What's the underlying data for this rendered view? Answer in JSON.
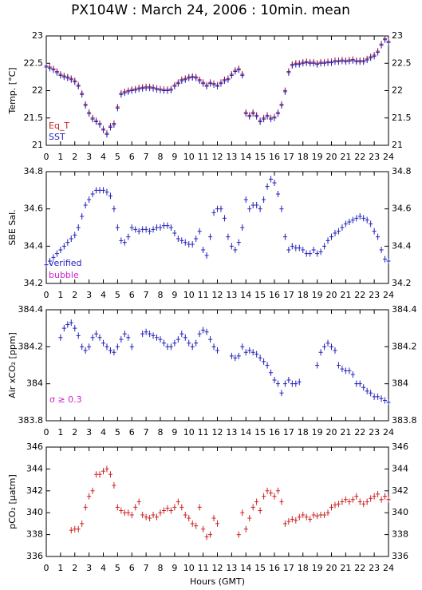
{
  "title": "PX104W : March 24, 2006 : 10min. mean",
  "chart_data": [
    {
      "type": "scatter",
      "ylabel": "Temp. [°C]",
      "x": [
        0,
        0.25,
        0.5,
        0.75,
        1,
        1.25,
        1.5,
        1.75,
        2,
        2.25,
        2.5,
        2.75,
        3,
        3.25,
        3.5,
        3.75,
        4,
        4.25,
        4.5,
        4.75,
        5,
        5.25,
        5.5,
        5.75,
        6,
        6.25,
        6.5,
        6.75,
        7,
        7.25,
        7.5,
        7.75,
        8,
        8.25,
        8.5,
        8.75,
        9,
        9.25,
        9.5,
        9.75,
        10,
        10.25,
        10.5,
        10.75,
        11,
        11.25,
        11.5,
        11.75,
        12,
        12.25,
        12.5,
        12.75,
        13,
        13.25,
        13.5,
        13.75,
        14,
        14.25,
        14.5,
        14.75,
        15,
        15.25,
        15.5,
        15.75,
        16,
        16.25,
        16.5,
        16.75,
        17,
        17.25,
        17.5,
        17.75,
        18,
        18.25,
        18.5,
        18.75,
        19,
        19.25,
        19.5,
        19.75,
        20,
        20.25,
        20.5,
        20.75,
        21,
        21.25,
        21.5,
        21.75,
        22,
        22.25,
        22.5,
        22.75,
        23,
        23.25,
        23.5,
        23.75,
        24
      ],
      "series": [
        {
          "name": "Eq_T",
          "color": "#cc2222",
          "values": [
            22.45,
            22.43,
            22.4,
            22.35,
            22.3,
            22.27,
            22.25,
            22.22,
            22.18,
            22.1,
            21.95,
            21.75,
            21.6,
            21.5,
            21.45,
            21.4,
            21.3,
            21.22,
            21.35,
            21.4,
            21.7,
            21.95,
            21.98,
            22.0,
            22.02,
            22.03,
            22.05,
            22.06,
            22.07,
            22.07,
            22.06,
            22.04,
            22.03,
            22.02,
            22.02,
            22.03,
            22.1,
            22.15,
            22.2,
            22.22,
            22.25,
            22.26,
            22.25,
            22.2,
            22.15,
            22.1,
            22.15,
            22.13,
            22.1,
            22.15,
            22.2,
            22.22,
            22.3,
            22.37,
            22.4,
            22.3,
            21.6,
            21.55,
            21.6,
            21.55,
            21.45,
            21.5,
            21.55,
            21.5,
            21.52,
            21.6,
            21.75,
            22.0,
            22.35,
            22.48,
            22.5,
            22.5,
            22.52,
            22.53,
            22.52,
            22.52,
            22.5,
            22.52,
            22.52,
            22.53,
            22.53,
            22.55,
            22.55,
            22.56,
            22.55,
            22.56,
            22.57,
            22.55,
            22.55,
            22.55,
            22.58,
            22.62,
            22.65,
            22.72,
            22.85,
            22.95,
            22.9
          ]
        },
        {
          "name": "SST",
          "color": "#2222bb",
          "values": [
            22.43,
            22.41,
            22.38,
            22.33,
            22.28,
            22.25,
            22.23,
            22.2,
            22.16,
            22.08,
            21.93,
            21.73,
            21.58,
            21.48,
            21.43,
            21.38,
            21.28,
            21.2,
            21.33,
            21.38,
            21.68,
            21.93,
            21.96,
            21.98,
            22.0,
            22.01,
            22.03,
            22.04,
            22.05,
            22.05,
            22.04,
            22.02,
            22.01,
            22.0,
            22.0,
            22.01,
            22.08,
            22.13,
            22.18,
            22.2,
            22.23,
            22.24,
            22.23,
            22.18,
            22.13,
            22.08,
            22.13,
            22.11,
            22.08,
            22.13,
            22.18,
            22.2,
            22.28,
            22.35,
            22.38,
            22.28,
            21.58,
            21.53,
            21.58,
            21.53,
            21.43,
            21.48,
            21.53,
            21.48,
            21.5,
            21.58,
            21.73,
            21.98,
            22.33,
            22.46,
            22.48,
            22.48,
            22.5,
            22.51,
            22.5,
            22.5,
            22.48,
            22.5,
            22.5,
            22.51,
            22.51,
            22.53,
            22.53,
            22.54,
            22.53,
            22.54,
            22.55,
            22.53,
            22.53,
            22.53,
            22.56,
            22.6,
            22.63,
            22.7,
            22.83,
            22.93,
            22.88
          ]
        }
      ],
      "xlim": [
        0,
        24
      ],
      "xticks": [
        0,
        1,
        2,
        3,
        4,
        5,
        6,
        7,
        8,
        9,
        10,
        11,
        12,
        13,
        14,
        15,
        16,
        17,
        18,
        19,
        20,
        21,
        22,
        23,
        24
      ],
      "ylim": [
        21,
        23
      ],
      "yticks": [
        21,
        21.5,
        22,
        22.5,
        23
      ]
    },
    {
      "type": "scatter",
      "ylabel": "SBE Sal.",
      "x": [
        0,
        0.25,
        0.5,
        0.75,
        1,
        1.25,
        1.5,
        1.75,
        2,
        2.25,
        2.5,
        2.75,
        3,
        3.25,
        3.5,
        3.75,
        4,
        4.25,
        4.5,
        4.75,
        5,
        5.25,
        5.5,
        5.75,
        6,
        6.25,
        6.5,
        6.75,
        7,
        7.25,
        7.5,
        7.75,
        8,
        8.25,
        8.5,
        8.75,
        9,
        9.25,
        9.5,
        9.75,
        10,
        10.25,
        10.5,
        10.75,
        11,
        11.25,
        11.5,
        11.75,
        12,
        12.25,
        12.5,
        12.75,
        13,
        13.25,
        13.5,
        13.75,
        14,
        14.25,
        14.5,
        14.75,
        15,
        15.25,
        15.5,
        15.75,
        16,
        16.25,
        16.5,
        16.75,
        17,
        17.25,
        17.5,
        17.75,
        18,
        18.25,
        18.5,
        18.75,
        19,
        19.25,
        19.5,
        19.75,
        20,
        20.25,
        20.5,
        20.75,
        21,
        21.25,
        21.5,
        21.75,
        22,
        22.25,
        22.5,
        22.75,
        23,
        23.25,
        23.5,
        23.75,
        24
      ],
      "series": [
        {
          "name": "verified",
          "color": "#2222bb",
          "values": [
            34.3,
            34.32,
            34.34,
            34.36,
            34.38,
            34.4,
            34.42,
            34.44,
            34.46,
            34.5,
            34.56,
            34.62,
            34.65,
            34.68,
            34.7,
            34.7,
            34.7,
            34.69,
            34.67,
            34.6,
            34.5,
            34.43,
            34.42,
            34.45,
            34.5,
            34.49,
            34.48,
            34.49,
            34.49,
            34.48,
            34.49,
            34.5,
            34.5,
            34.51,
            34.51,
            34.5,
            34.47,
            34.44,
            34.43,
            34.42,
            34.41,
            34.41,
            34.44,
            34.48,
            34.38,
            34.35,
            34.45,
            34.58,
            34.6,
            34.6,
            34.55,
            34.45,
            34.4,
            34.38,
            34.42,
            34.5,
            34.65,
            34.6,
            34.62,
            34.62,
            34.6,
            34.65,
            34.72,
            34.76,
            34.74,
            34.68,
            34.6,
            34.45,
            34.38,
            34.4,
            34.39,
            34.39,
            34.38,
            34.36,
            34.36,
            34.38,
            34.36,
            34.37,
            34.4,
            34.43,
            34.45,
            34.47,
            34.48,
            34.5,
            34.52,
            34.53,
            34.54,
            34.55,
            34.56,
            34.55,
            34.54,
            34.52,
            34.48,
            34.45,
            34.38,
            34.33,
            34.32
          ]
        },
        {
          "name": "bubble",
          "color": "#cc22cc",
          "values": [
            null,
            null,
            null,
            null,
            null,
            null,
            null,
            null,
            null,
            null,
            null,
            null,
            null,
            null,
            null,
            null,
            null,
            null,
            null,
            null,
            null,
            null,
            null,
            null,
            null,
            null,
            null,
            null,
            null,
            null,
            null,
            null,
            null,
            null,
            null,
            null,
            null,
            null,
            null,
            null,
            null,
            null,
            null,
            null,
            null,
            null,
            null,
            null,
            null,
            null,
            null,
            null,
            null,
            null,
            null,
            null,
            null,
            null,
            null,
            null,
            null,
            null,
            null,
            null,
            null,
            null,
            null,
            null,
            null,
            null,
            null,
            null,
            null,
            null,
            null,
            null,
            null,
            null,
            null,
            null,
            null,
            null,
            null,
            null,
            null,
            null,
            null,
            null,
            null,
            null,
            null,
            null,
            null,
            null,
            null,
            null,
            null
          ]
        }
      ],
      "xlim": [
        0,
        24
      ],
      "xticks": [
        0,
        1,
        2,
        3,
        4,
        5,
        6,
        7,
        8,
        9,
        10,
        11,
        12,
        13,
        14,
        15,
        16,
        17,
        18,
        19,
        20,
        21,
        22,
        23,
        24
      ],
      "ylim": [
        34.2,
        34.8
      ],
      "yticks": [
        34.2,
        34.4,
        34.6,
        34.8
      ]
    },
    {
      "type": "scatter",
      "ylabel": "Air xCO₂ [ppm]",
      "annotation": {
        "text": "σ ≥ 0.3",
        "color": "#cc22cc"
      },
      "x": [
        0,
        0.25,
        0.5,
        0.75,
        1,
        1.25,
        1.5,
        1.75,
        2,
        2.25,
        2.5,
        2.75,
        3,
        3.25,
        3.5,
        3.75,
        4,
        4.25,
        4.5,
        4.75,
        5,
        5.25,
        5.5,
        5.75,
        6,
        6.25,
        6.5,
        6.75,
        7,
        7.25,
        7.5,
        7.75,
        8,
        8.25,
        8.5,
        8.75,
        9,
        9.25,
        9.5,
        9.75,
        10,
        10.25,
        10.5,
        10.75,
        11,
        11.25,
        11.5,
        11.75,
        12,
        12.25,
        12.5,
        12.75,
        13,
        13.25,
        13.5,
        13.75,
        14,
        14.25,
        14.5,
        14.75,
        15,
        15.25,
        15.5,
        15.75,
        16,
        16.25,
        16.5,
        16.75,
        17,
        17.25,
        17.5,
        17.75,
        18,
        18.25,
        18.5,
        18.75,
        19,
        19.25,
        19.5,
        19.75,
        20,
        20.25,
        20.5,
        20.75,
        21,
        21.25,
        21.5,
        21.75,
        22,
        22.25,
        22.5,
        22.75,
        23,
        23.25,
        23.5,
        23.75,
        24
      ],
      "series": [
        {
          "name": "xCO2",
          "color": "#2222bb",
          "values": [
            null,
            null,
            null,
            null,
            384.25,
            384.3,
            384.32,
            384.33,
            384.3,
            384.26,
            384.2,
            384.18,
            384.2,
            384.25,
            384.27,
            384.25,
            384.22,
            384.2,
            384.18,
            384.17,
            384.2,
            384.24,
            384.27,
            384.25,
            384.2,
            null,
            null,
            384.27,
            384.28,
            384.27,
            384.26,
            384.25,
            384.24,
            384.22,
            384.2,
            384.2,
            384.22,
            384.24,
            384.27,
            384.25,
            384.22,
            384.2,
            384.22,
            384.27,
            384.29,
            384.28,
            384.24,
            384.2,
            384.18,
            null,
            null,
            null,
            384.15,
            384.14,
            384.15,
            384.2,
            384.17,
            384.18,
            384.17,
            384.16,
            384.14,
            384.12,
            384.1,
            384.06,
            384.02,
            384.0,
            383.95,
            384.0,
            384.02,
            384.0,
            384.0,
            384.01,
            null,
            null,
            null,
            null,
            384.1,
            384.17,
            384.2,
            384.22,
            384.2,
            384.18,
            384.1,
            384.08,
            384.07,
            384.07,
            384.05,
            384.0,
            384.0,
            383.98,
            383.96,
            383.95,
            383.93,
            383.93,
            383.92,
            383.91,
            383.9
          ]
        }
      ],
      "xlim": [
        0,
        24
      ],
      "xticks": [
        0,
        1,
        2,
        3,
        4,
        5,
        6,
        7,
        8,
        9,
        10,
        11,
        12,
        13,
        14,
        15,
        16,
        17,
        18,
        19,
        20,
        21,
        22,
        23,
        24
      ],
      "ylim": [
        383.8,
        384.4
      ],
      "yticks": [
        383.8,
        384,
        384.2,
        384.4
      ]
    },
    {
      "type": "scatter",
      "ylabel": "pCO₂ [μatm]",
      "xlabel": "Hours (GMT)",
      "x": [
        0,
        0.25,
        0.5,
        0.75,
        1,
        1.25,
        1.5,
        1.75,
        2,
        2.25,
        2.5,
        2.75,
        3,
        3.25,
        3.5,
        3.75,
        4,
        4.25,
        4.5,
        4.75,
        5,
        5.25,
        5.5,
        5.75,
        6,
        6.25,
        6.5,
        6.75,
        7,
        7.25,
        7.5,
        7.75,
        8,
        8.25,
        8.5,
        8.75,
        9,
        9.25,
        9.5,
        9.75,
        10,
        10.25,
        10.5,
        10.75,
        11,
        11.25,
        11.5,
        11.75,
        12,
        12.25,
        12.5,
        12.75,
        13,
        13.25,
        13.5,
        13.75,
        14,
        14.25,
        14.5,
        14.75,
        15,
        15.25,
        15.5,
        15.75,
        16,
        16.25,
        16.5,
        16.75,
        17,
        17.25,
        17.5,
        17.75,
        18,
        18.25,
        18.5,
        18.75,
        19,
        19.25,
        19.5,
        19.75,
        20,
        20.25,
        20.5,
        20.75,
        21,
        21.25,
        21.5,
        21.75,
        22,
        22.25,
        22.5,
        22.75,
        23,
        23.25,
        23.5,
        23.75,
        24
      ],
      "series": [
        {
          "name": "pCO2",
          "color": "#cc2222",
          "values": [
            null,
            null,
            null,
            null,
            null,
            null,
            null,
            338.4,
            338.5,
            338.5,
            339,
            340.5,
            341.5,
            342,
            343.5,
            343.5,
            343.8,
            344,
            343.5,
            342.5,
            340.5,
            340.2,
            340,
            340,
            339.8,
            340.5,
            341,
            339.8,
            339.6,
            339.5,
            339.8,
            339.6,
            340,
            340.2,
            340.4,
            340.2,
            340.5,
            341,
            340.5,
            339.8,
            339.5,
            339,
            338.8,
            340.5,
            338.5,
            337.8,
            338,
            339.5,
            339,
            null,
            null,
            null,
            null,
            null,
            338,
            340,
            338.5,
            339.5,
            340.5,
            341,
            340.2,
            341.5,
            342,
            341.8,
            341.5,
            342,
            341,
            339,
            339.2,
            339.4,
            339.3,
            339.6,
            339.8,
            339.6,
            339.4,
            339.8,
            339.7,
            339.8,
            339.8,
            340,
            340.5,
            340.7,
            340.8,
            341,
            341.2,
            341,
            341.2,
            341.5,
            341,
            340.8,
            341,
            341.3,
            341.5,
            341.7,
            341.2,
            341.5,
            341.2
          ]
        }
      ],
      "xlim": [
        0,
        24
      ],
      "xticks": [
        0,
        1,
        2,
        3,
        4,
        5,
        6,
        7,
        8,
        9,
        10,
        11,
        12,
        13,
        14,
        15,
        16,
        17,
        18,
        19,
        20,
        21,
        22,
        23,
        24
      ],
      "ylim": [
        336,
        346
      ],
      "yticks": [
        336,
        338,
        340,
        342,
        344,
        346
      ]
    }
  ]
}
